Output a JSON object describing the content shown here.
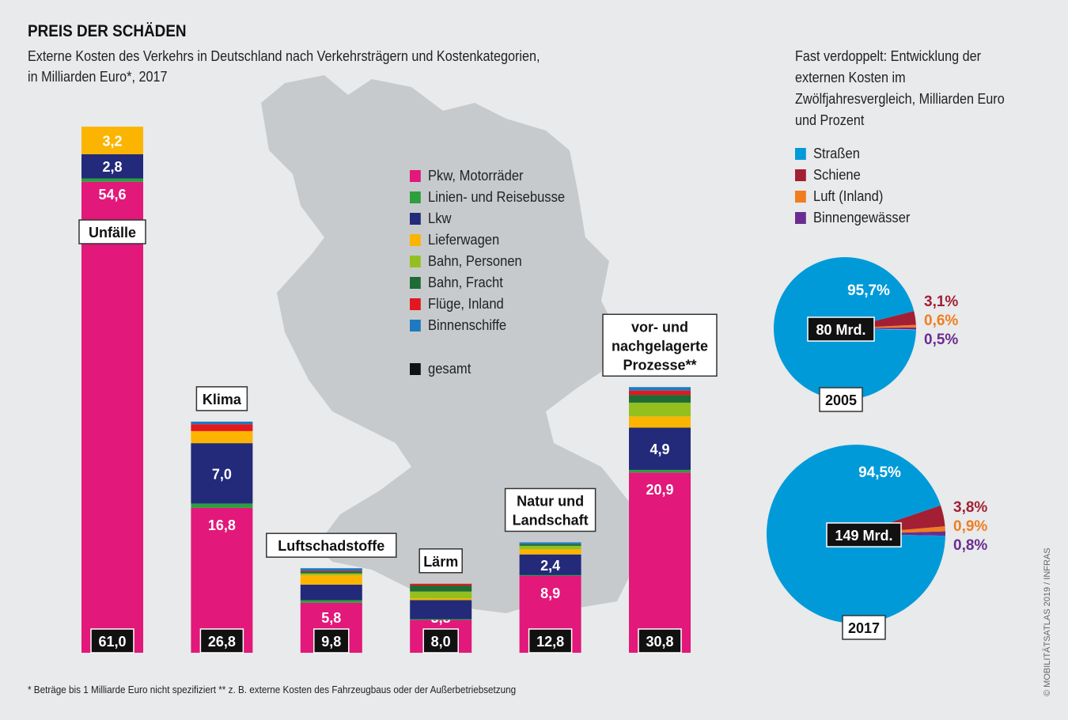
{
  "title": "PREIS DER SCHÄDEN",
  "subtitle_line1": "Externe Kosten des Verkehrs in Deutschland nach Verkehrsträgern und Kostenkategorien,",
  "subtitle_line2": "in Milliarden Euro*, 2017",
  "footnote": "* Beträge bis 1 Milliarde Euro nicht spezifiziert  ** z. B. externe Kosten des Fahrzeugbaus oder der Außerbetriebsetzung",
  "credit": "© MOBILITÄTSATLAS 2019 / INFRAS",
  "chart_data": [
    {
      "type": "bar",
      "stacked": true,
      "categories": [
        "Unfälle",
        "Klima",
        "Luftschadstoffe",
        "Lärm",
        "Natur und Landschaft",
        "vor- und nachgelagerte Prozesse**"
      ],
      "totals": [
        "61,0",
        "26,8",
        "9,8",
        "8,0",
        "12,8",
        "30,8"
      ],
      "total_label": "gesamt",
      "series": [
        {
          "name": "Pkw, Motorräder",
          "color": "#e2187a",
          "values": [
            54.6,
            16.8,
            5.8,
            3.8,
            8.9,
            20.9
          ],
          "labels": [
            "54,6",
            "16,8",
            "5,8",
            "3,8",
            "8,9",
            "20,9"
          ]
        },
        {
          "name": "Linien- und Reisebusse",
          "color": "#2e9e3e",
          "values": [
            0.4,
            0.5,
            0.3,
            0.1,
            0.1,
            0.3
          ]
        },
        {
          "name": "Lkw",
          "color": "#232a7a",
          "values": [
            2.8,
            7.0,
            1.8,
            2.2,
            2.4,
            4.9
          ],
          "labels": [
            "2,8",
            "7,0",
            "",
            "",
            "2,4",
            "4,9"
          ]
        },
        {
          "name": "Lieferwagen",
          "color": "#fbb400",
          "values": [
            3.2,
            1.4,
            1.1,
            0.2,
            0.6,
            1.3
          ],
          "labels": [
            "3,2",
            "",
            "",
            "",
            "",
            ""
          ]
        },
        {
          "name": "Bahn, Personen",
          "color": "#93c01f",
          "values": [
            0,
            0,
            0.2,
            0.8,
            0.4,
            1.6
          ]
        },
        {
          "name": "Bahn, Fracht",
          "color": "#1f6b35",
          "values": [
            0,
            0,
            0.2,
            0.7,
            0.2,
            0.9
          ]
        },
        {
          "name": "Flüge, Inland",
          "color": "#e3171f",
          "values": [
            0,
            0.8,
            0.1,
            0.2,
            0,
            0.5
          ]
        },
        {
          "name": "Binnenschiffe",
          "color": "#1d7ac0",
          "values": [
            0,
            0.3,
            0.3,
            0,
            0.2,
            0.4
          ]
        }
      ],
      "unit": "Milliarden Euro"
    },
    {
      "type": "pie",
      "title": "Fast verdoppelt: Entwicklung der externen Kosten im Zwölfjahresvergleich, Milliarden Euro und Prozent",
      "legend": [
        {
          "name": "Straßen",
          "color": "#009ad9"
        },
        {
          "name": "Schiene",
          "color": "#a31f34"
        },
        {
          "name": "Luft (Inland)",
          "color": "#f07d1e"
        },
        {
          "name": "Binnengewässer",
          "color": "#6b2c91"
        }
      ],
      "pies": [
        {
          "year": "2005",
          "total": "80 Mrd.",
          "values": [
            95.7,
            3.1,
            0.6,
            0.5
          ],
          "labels": [
            "95,7%",
            "3,1%",
            "0,6%",
            "0,5%"
          ]
        },
        {
          "year": "2017",
          "total": "149 Mrd.",
          "values": [
            94.5,
            3.8,
            0.9,
            0.8
          ],
          "labels": [
            "94,5%",
            "3,8%",
            "0,9%",
            "0,8%"
          ]
        }
      ]
    }
  ]
}
